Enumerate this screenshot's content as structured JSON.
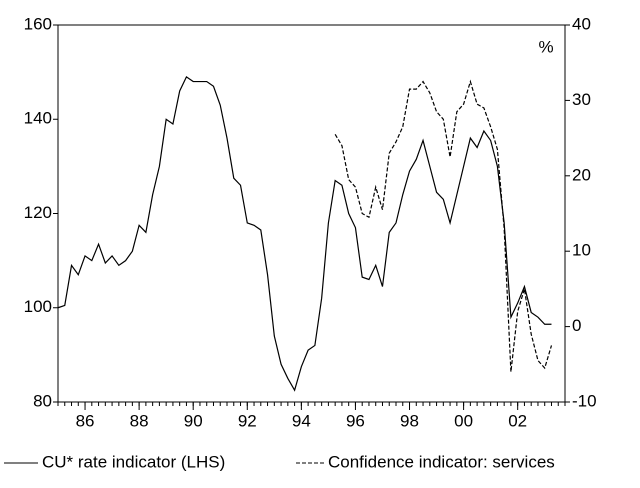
{
  "chart_data": {
    "type": "line",
    "annotation": "%",
    "x": [
      1985,
      1985.25,
      1985.5,
      1985.75,
      1986,
      1986.25,
      1986.5,
      1986.75,
      1987,
      1987.25,
      1987.5,
      1987.75,
      1988,
      1988.25,
      1988.5,
      1988.75,
      1989,
      1989.25,
      1989.5,
      1989.75,
      1990,
      1990.25,
      1990.5,
      1990.75,
      1991,
      1991.25,
      1991.5,
      1991.75,
      1992,
      1992.25,
      1992.5,
      1992.75,
      1993,
      1993.25,
      1993.5,
      1993.75,
      1994,
      1994.25,
      1994.5,
      1994.75,
      1995,
      1995.25,
      1995.5,
      1995.75,
      1996,
      1996.25,
      1996.5,
      1996.75,
      1997,
      1997.25,
      1997.5,
      1997.75,
      1998,
      1998.25,
      1998.5,
      1998.75,
      1999,
      1999.25,
      1999.5,
      1999.75,
      2000,
      2000.25,
      2000.5,
      2000.75,
      2001,
      2001.25,
      2001.5,
      2001.75,
      2002,
      2002.25,
      2002.5,
      2002.75,
      2003,
      2003.25
    ],
    "series": [
      {
        "name": "CU* rate indicator (LHS)",
        "color": "#000000",
        "dash": "solid",
        "axis": "y",
        "values": [
          100,
          100.5,
          109,
          107,
          111,
          110,
          113.5,
          109.5,
          111,
          109,
          110,
          112,
          117.5,
          116,
          124,
          130,
          140,
          139,
          146,
          149,
          148,
          148,
          148,
          147,
          143,
          136,
          127.5,
          126,
          118,
          117.5,
          116.5,
          107,
          94,
          88,
          85,
          82.5,
          87.5,
          91,
          92,
          102,
          118,
          127,
          126,
          120,
          117,
          106.5,
          106,
          109,
          104.5,
          116,
          118,
          124,
          129,
          131.5,
          135.5,
          130,
          124.5,
          123,
          118,
          124,
          130,
          136,
          134,
          137.5,
          135.5,
          130,
          118,
          98,
          101,
          104.5,
          99,
          98,
          96.5,
          96.5
        ]
      },
      {
        "name": "Confidence indicator: services",
        "color": "#000000",
        "dash": "dashed",
        "axis": "y2",
        "values": [
          null,
          null,
          null,
          null,
          null,
          null,
          null,
          null,
          null,
          null,
          null,
          null,
          null,
          null,
          null,
          null,
          null,
          null,
          null,
          null,
          null,
          null,
          null,
          null,
          null,
          null,
          null,
          null,
          null,
          null,
          null,
          null,
          null,
          null,
          null,
          null,
          null,
          null,
          null,
          null,
          null,
          25.5,
          24,
          19.5,
          18.5,
          15,
          14.5,
          18.5,
          15.5,
          23,
          24.5,
          26.5,
          31.5,
          31.5,
          32.5,
          31,
          28.5,
          27.5,
          22.5,
          28.5,
          29.5,
          32.5,
          29.5,
          29,
          26.5,
          23.5,
          13,
          -6,
          2,
          5,
          -1,
          -4.5,
          -5.5,
          -2.5
        ]
      }
    ],
    "xlim": [
      1985,
      2003.75
    ],
    "xticks": [
      {
        "value": 1986,
        "label": "86"
      },
      {
        "value": 1988,
        "label": "88"
      },
      {
        "value": 1990,
        "label": "90"
      },
      {
        "value": 1992,
        "label": "92"
      },
      {
        "value": 1994,
        "label": "94"
      },
      {
        "value": 1996,
        "label": "96"
      },
      {
        "value": 1998,
        "label": "98"
      },
      {
        "value": 2000,
        "label": "00"
      },
      {
        "value": 2002,
        "label": "02"
      }
    ],
    "ylim": [
      80,
      160
    ],
    "yticks": [
      80,
      100,
      120,
      140,
      160
    ],
    "y2lim": [
      -10,
      40
    ],
    "y2ticks": [
      -10,
      0,
      10,
      20,
      30,
      40
    ],
    "grid": false,
    "legend": "bottom"
  }
}
